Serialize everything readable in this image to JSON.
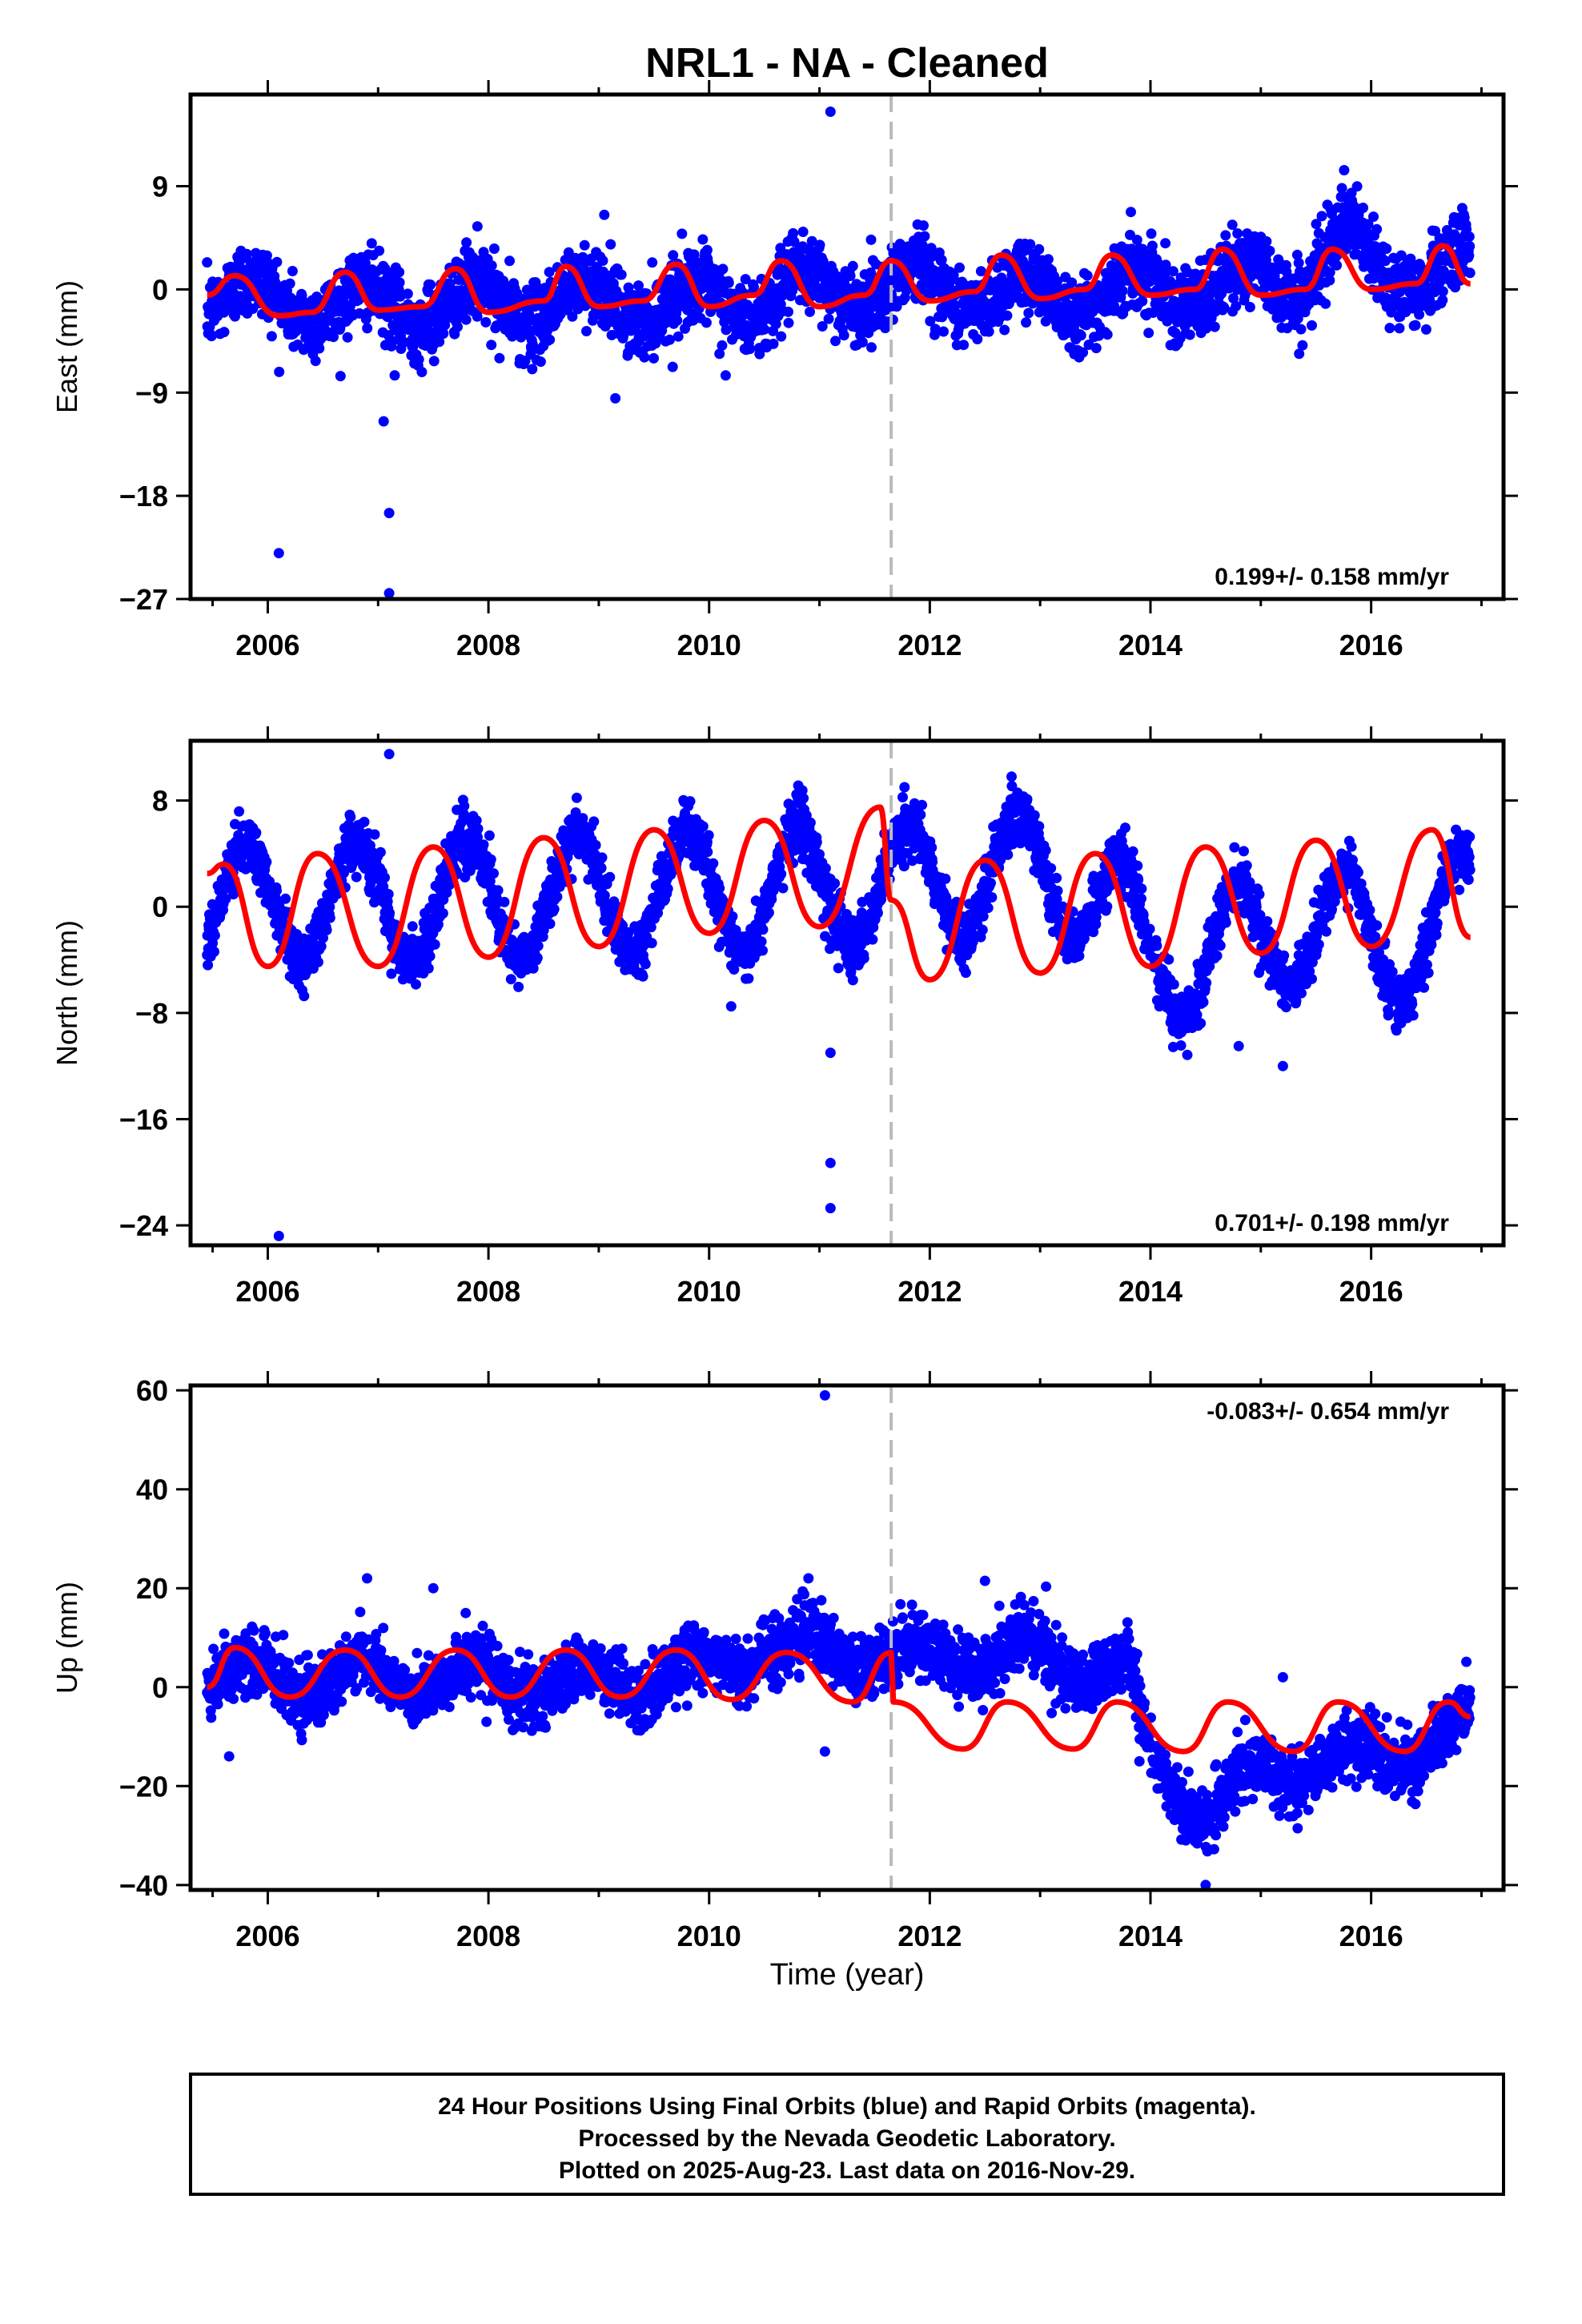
{
  "chart_data": {
    "type": "scatter",
    "title": "NRL1  - NA - Cleaned",
    "xlabel": "Time (year)",
    "xlim": [
      2005.3,
      2017.2
    ],
    "x_ticks": [
      2006,
      2008,
      2010,
      2012,
      2014,
      2016
    ],
    "x_tick_labels": [
      "2006",
      "2008",
      "2010",
      "2012",
      "2014",
      "2016"
    ],
    "break_line_x": 2011.65,
    "grid": false,
    "colors": {
      "points": "#0000ff",
      "model": "#ff0000",
      "break_line": "#bbbbbb"
    },
    "panels": [
      {
        "ylabel": "East (mm)",
        "ylim": [
          -27,
          17
        ],
        "y_ticks": [
          -27,
          -18,
          -9,
          0,
          9
        ],
        "y_tick_labels": [
          "−27",
          "−18",
          "−9",
          "0",
          "9"
        ],
        "rate_label": "0.199+/- 0.158 mm/yr",
        "rate_position": "bottom-right",
        "points": {
          "x_range": [
            2005.45,
            2016.9
          ],
          "baseline": [
            [
              2005.45,
              -0.5
            ],
            [
              2007.0,
              -1.5
            ],
            [
              2009.0,
              -1.0
            ],
            [
              2010.0,
              -1.2
            ],
            [
              2011.65,
              0.5
            ],
            [
              2013.0,
              -0.5
            ],
            [
              2014.0,
              0.0
            ],
            [
              2015.0,
              0.5
            ],
            [
              2016.9,
              2.0
            ]
          ],
          "amplitude": 1.8,
          "phase_year": 0.62,
          "scatter_sd": 1.6,
          "jump_events": [
            {
              "from": 2015.4,
              "to": 2016.0,
              "offset": 3.5
            }
          ],
          "outliers": [
            [
              2006.1,
              -23
            ],
            [
              2007.1,
              -19.5
            ],
            [
              2007.05,
              -11.5
            ],
            [
              2007.1,
              -26.5
            ],
            [
              2007.15,
              -7.5
            ],
            [
              2008.1,
              -6
            ],
            [
              2009.15,
              -9.5
            ],
            [
              2010.15,
              -7.5
            ],
            [
              2011.1,
              15.5
            ],
            [
              2009.05,
              6.5
            ],
            [
              2007.9,
              5.5
            ]
          ]
        },
        "model": [
          [
            2005.45,
            -0.5
          ],
          [
            2005.7,
            1.2
          ],
          [
            2006.1,
            -2.3
          ],
          [
            2006.4,
            -2.0
          ],
          [
            2006.7,
            1.5
          ],
          [
            2007.0,
            -1.8
          ],
          [
            2007.4,
            -1.5
          ],
          [
            2007.7,
            1.8
          ],
          [
            2008.0,
            -2.0
          ],
          [
            2008.5,
            -1.0
          ],
          [
            2008.7,
            2.0
          ],
          [
            2009.0,
            -1.5
          ],
          [
            2009.4,
            -1.0
          ],
          [
            2009.7,
            2.2
          ],
          [
            2010.0,
            -1.5
          ],
          [
            2010.4,
            -0.5
          ],
          [
            2010.65,
            2.5
          ],
          [
            2011.0,
            -1.5
          ],
          [
            2011.4,
            -0.5
          ],
          [
            2011.65,
            2.5
          ],
          [
            2012.0,
            -1.0
          ],
          [
            2012.4,
            -0.2
          ],
          [
            2012.65,
            3.0
          ],
          [
            2013.0,
            -0.8
          ],
          [
            2013.4,
            0.0
          ],
          [
            2013.65,
            3.0
          ],
          [
            2014.0,
            -0.5
          ],
          [
            2014.4,
            0.0
          ],
          [
            2014.65,
            3.5
          ],
          [
            2015.0,
            -0.5
          ],
          [
            2015.4,
            0.0
          ],
          [
            2015.65,
            3.5
          ],
          [
            2016.0,
            0.0
          ],
          [
            2016.4,
            0.5
          ],
          [
            2016.65,
            3.8
          ],
          [
            2016.9,
            0.5
          ]
        ]
      },
      {
        "ylabel": "North (mm)",
        "ylim": [
          -25.5,
          12.5
        ],
        "y_ticks": [
          -24,
          -16,
          -8,
          0,
          8
        ],
        "y_tick_labels": [
          "−24",
          "−16",
          "−8",
          "0",
          "8"
        ],
        "rate_label": "0.701+/- 0.198 mm/yr",
        "rate_position": "bottom-right",
        "points": {
          "x_range": [
            2005.45,
            2016.9
          ],
          "baseline": [
            [
              2005.45,
              0.0
            ],
            [
              2011.65,
              1.5
            ],
            [
              2012.5,
              2.5
            ],
            [
              2013.5,
              2.0
            ],
            [
              2014.0,
              -4.5
            ],
            [
              2014.8,
              -2.5
            ],
            [
              2015.0,
              -3.0
            ],
            [
              2015.5,
              0.0
            ],
            [
              2016.0,
              -3.5
            ],
            [
              2016.9,
              0.0
            ]
          ],
          "amplitude": 4.5,
          "phase_year": 0.55,
          "scatter_sd": 1.1,
          "outliers": [
            [
              2006.1,
              -24.8
            ],
            [
              2007.1,
              11.5
            ],
            [
              2011.1,
              -11
            ],
            [
              2011.1,
              -19.3
            ],
            [
              2011.1,
              -22.7
            ],
            [
              2008.8,
              8.2
            ],
            [
              2015.2,
              -12
            ],
            [
              2014.8,
              -10.5
            ],
            [
              2010.2,
              -7.5
            ]
          ]
        },
        "model": [
          [
            2005.45,
            2.5
          ],
          [
            2005.6,
            3.2
          ],
          [
            2006.0,
            -4.5
          ],
          [
            2006.45,
            4.0
          ],
          [
            2007.0,
            -4.5
          ],
          [
            2007.5,
            4.5
          ],
          [
            2008.0,
            -3.8
          ],
          [
            2008.5,
            5.2
          ],
          [
            2009.0,
            -3.0
          ],
          [
            2009.5,
            5.8
          ],
          [
            2010.0,
            -2.0
          ],
          [
            2010.5,
            6.5
          ],
          [
            2011.0,
            -1.5
          ],
          [
            2011.55,
            7.5
          ],
          [
            2011.65,
            0.5
          ],
          [
            2012.0,
            -5.5
          ],
          [
            2012.5,
            3.5
          ],
          [
            2013.0,
            -5.0
          ],
          [
            2013.5,
            4.0
          ],
          [
            2014.0,
            -4.5
          ],
          [
            2014.5,
            4.5
          ],
          [
            2015.0,
            -3.5
          ],
          [
            2015.5,
            5.0
          ],
          [
            2016.0,
            -3.0
          ],
          [
            2016.55,
            5.8
          ],
          [
            2016.9,
            -2.3
          ]
        ]
      },
      {
        "ylabel": "Up (mm)",
        "ylim": [
          -41,
          61
        ],
        "y_ticks": [
          -40,
          -20,
          0,
          20,
          40,
          60
        ],
        "y_tick_labels": [
          "−40",
          "−20",
          "0",
          "20",
          "40",
          "60"
        ],
        "rate_label": "-0.083+/- 0.654 mm/yr",
        "rate_position": "top-right",
        "points": {
          "x_range": [
            2005.45,
            2016.9
          ],
          "baseline": [
            [
              2005.45,
              2.0
            ],
            [
              2009.0,
              1.0
            ],
            [
              2010.0,
              3.0
            ],
            [
              2010.5,
              8.0
            ],
            [
              2011.65,
              6.0
            ],
            [
              2012.0,
              6.0
            ],
            [
              2013.0,
              6.0
            ],
            [
              2013.8,
              3.0
            ],
            [
              2014.0,
              -15.0
            ],
            [
              2014.5,
              -25.0
            ],
            [
              2014.8,
              -20.0
            ],
            [
              2015.5,
              -15.0
            ],
            [
              2016.0,
              -15.0
            ],
            [
              2016.9,
              -8.0
            ]
          ],
          "amplitude": 3.5,
          "phase_year": 0.62,
          "scatter_sd": 3.2,
          "outliers": [
            [
              2011.05,
              59
            ],
            [
              2011.05,
              -13
            ],
            [
              2005.65,
              -14
            ],
            [
              2014.5,
              -40
            ],
            [
              2006.9,
              22
            ],
            [
              2007.5,
              20
            ],
            [
              2010.9,
              22
            ],
            [
              2012.5,
              21.5
            ],
            [
              2015.2,
              2
            ],
            [
              2013.9,
              -15
            ]
          ]
        },
        "model": [
          [
            2005.45,
            0.0
          ],
          [
            2005.7,
            8.0
          ],
          [
            2006.2,
            -2.0
          ],
          [
            2006.7,
            7.5
          ],
          [
            2007.2,
            -2.0
          ],
          [
            2007.7,
            7.5
          ],
          [
            2008.2,
            -2.0
          ],
          [
            2008.7,
            7.5
          ],
          [
            2009.2,
            -2.0
          ],
          [
            2009.7,
            7.5
          ],
          [
            2010.2,
            -2.5
          ],
          [
            2010.7,
            7.0
          ],
          [
            2011.3,
            -3.0
          ],
          [
            2011.65,
            7.0
          ],
          [
            2011.67,
            -3.0
          ],
          [
            2012.3,
            -12.5
          ],
          [
            2012.7,
            -3.0
          ],
          [
            2013.3,
            -12.5
          ],
          [
            2013.7,
            -3.0
          ],
          [
            2014.3,
            -13.0
          ],
          [
            2014.7,
            -3.0
          ],
          [
            2015.3,
            -13.0
          ],
          [
            2015.7,
            -3.0
          ],
          [
            2016.3,
            -13.0
          ],
          [
            2016.7,
            -3.0
          ],
          [
            2016.9,
            -6.0
          ]
        ]
      }
    ]
  },
  "footer": {
    "line1": "24 Hour Positions Using Final Orbits (blue) and Rapid Orbits (magenta).",
    "line2": "Processed by the Nevada Geodetic Laboratory.",
    "line3": "Plotted on 2025-Aug-23. Last data on 2016-Nov-29."
  }
}
